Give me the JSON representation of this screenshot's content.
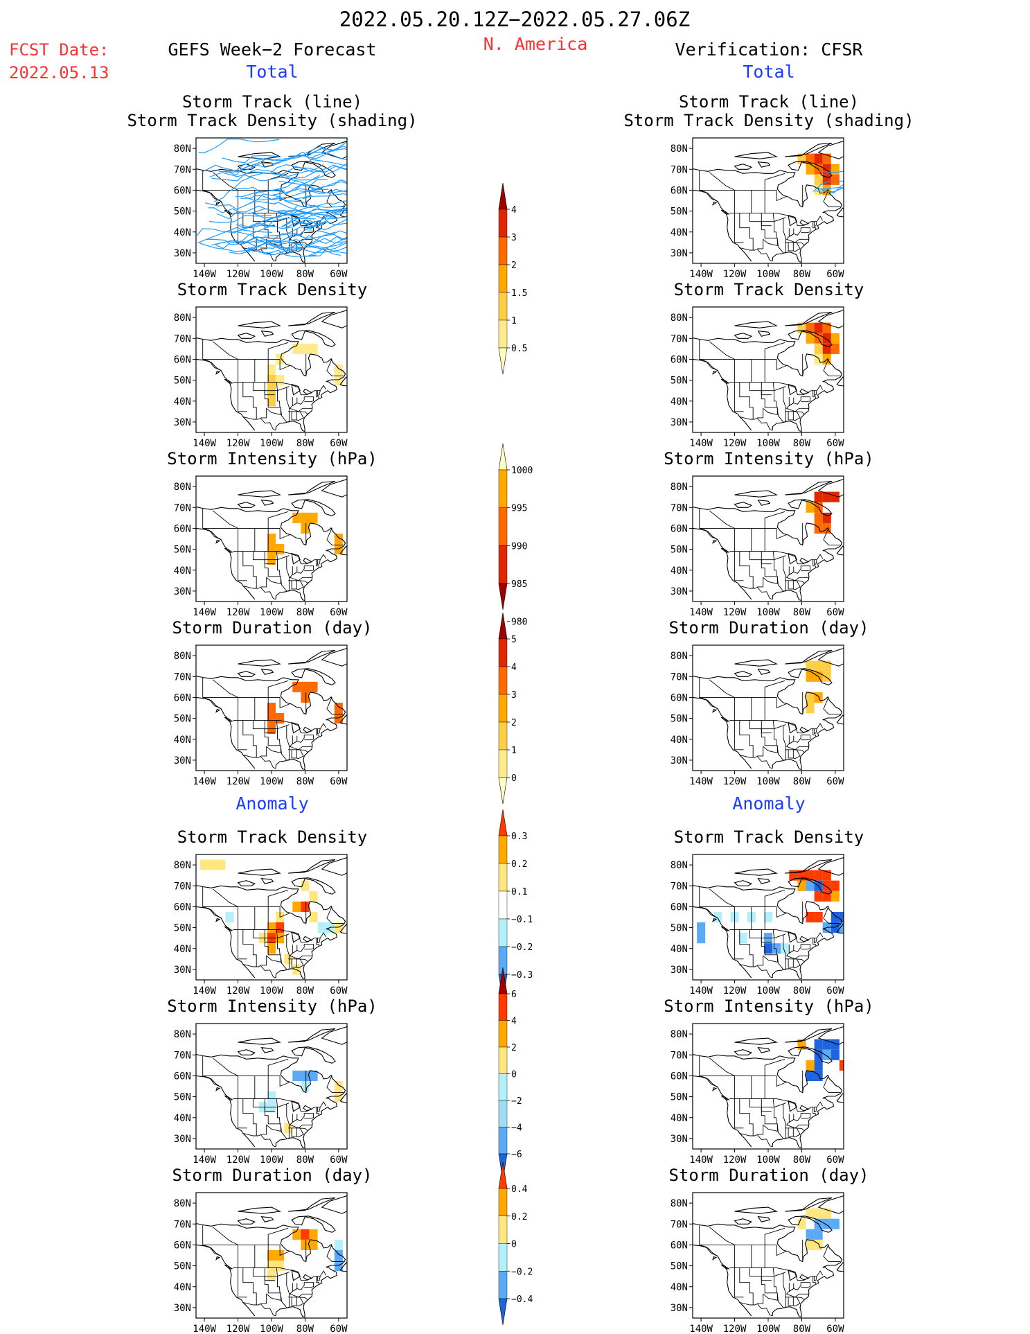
{
  "header": {
    "date_range": "2022.05.20.12Z−2022.05.27.06Z",
    "region": "N. America",
    "fcst_label": "FCST Date:",
    "fcst_date": "2022.05.13",
    "left_title": "GEFS Week−2 Forecast",
    "right_title": "Verification: CFSR",
    "total_label": "Total",
    "anomaly_label": "Anomaly"
  },
  "colors": {
    "red_text": "#ff3030",
    "blue_text": "#1a3cff",
    "track_line": "#1e9bff"
  },
  "axes": {
    "lat_ticks": [
      "80N",
      "70N",
      "60N",
      "50N",
      "40N",
      "30N"
    ],
    "lon_ticks": [
      "140W",
      "120W",
      "100W",
      "80W",
      "60W"
    ],
    "xlim": [
      -145,
      -55
    ],
    "ylim": [
      25,
      85
    ]
  },
  "colorbars": [
    {
      "name": "total-density",
      "labels": [
        "4",
        "3",
        "2",
        "1.5",
        "1",
        "0.5"
      ],
      "colors": [
        "#a00000",
        "#e02800",
        "#ff6a00",
        "#ffa800",
        "#ffcd46",
        "#ffeb8c",
        "#ffffc4"
      ]
    },
    {
      "name": "total-intensity",
      "labels": [
        "1000",
        "995",
        "990",
        "985",
        "980"
      ],
      "colors": [
        "#ffffc4",
        "#ffa800",
        "#ff6a00",
        "#e02800",
        "#a00000"
      ]
    },
    {
      "name": "total-duration",
      "labels": [
        "5",
        "4",
        "3",
        "2",
        "1",
        "0"
      ],
      "colors": [
        "#a00000",
        "#e02800",
        "#ff6a00",
        "#ffa800",
        "#ffcd46",
        "#ffeb8c",
        "#ffffc4"
      ]
    },
    {
      "name": "anom-density",
      "labels": [
        "0.3",
        "0.2",
        "0.1",
        "−0.1",
        "−0.2",
        "−0.3"
      ],
      "colors": [
        "#ff3c00",
        "#ffa800",
        "#ffe680",
        "#ffffff",
        "#b4f0fa",
        "#5aaaf5",
        "#1e64dc"
      ]
    },
    {
      "name": "anom-intensity",
      "labels": [
        "6",
        "4",
        "2",
        "0",
        "−2",
        "−4",
        "−6"
      ],
      "colors": [
        "#a00000",
        "#ff3c00",
        "#ffa800",
        "#ffe680",
        "#b4f0fa",
        "#a0dcf5",
        "#5aaaf5",
        "#1e64dc"
      ]
    },
    {
      "name": "anom-duration",
      "labels": [
        "0.4",
        "0.2",
        "0",
        "−0.2",
        "−0.4"
      ],
      "colors": [
        "#ff3c00",
        "#ffa800",
        "#ffe680",
        "#b4f0fa",
        "#5aaaf5",
        "#1e64dc"
      ]
    }
  ],
  "chart_data": [
    {
      "type": "heatmap",
      "panel": "gefs-total-track",
      "title": "Storm Track (line)",
      "subtitle": "Storm Track Density (shading)",
      "has_tracks": true,
      "cells": []
    },
    {
      "type": "heatmap",
      "panel": "cfsr-total-track",
      "title": "Storm Track (line)",
      "subtitle": "Storm Track Density (shading)",
      "has_tracks": true,
      "cells": [
        [
          -80,
          75,
          1.2
        ],
        [
          -75,
          75,
          2.2
        ],
        [
          -70,
          75,
          3.0
        ],
        [
          -65,
          75,
          2.1
        ],
        [
          -75,
          70,
          1.6
        ],
        [
          -70,
          70,
          2.5
        ],
        [
          -65,
          70,
          3.4
        ],
        [
          -60,
          70,
          1.8
        ],
        [
          -70,
          65,
          1.2
        ],
        [
          -65,
          65,
          3.6
        ],
        [
          -60,
          65,
          2.6
        ],
        [
          -70,
          60,
          0.8
        ],
        [
          -65,
          60,
          1.6
        ]
      ]
    },
    {
      "type": "heatmap",
      "panel": "gefs-total-density",
      "title": "Storm Track Density",
      "cells": [
        [
          -85,
          65,
          0.7
        ],
        [
          -80,
          65,
          0.6
        ],
        [
          -75,
          65,
          0.6
        ],
        [
          -100,
          55,
          0.8
        ],
        [
          -100,
          50,
          1.0
        ],
        [
          -100,
          45,
          1.3
        ],
        [
          -100,
          40,
          1.2
        ],
        [
          -95,
          50,
          0.9
        ],
        [
          -60,
          55,
          0.6
        ],
        [
          -60,
          50,
          0.6
        ],
        [
          -95,
          60,
          0.6
        ]
      ]
    },
    {
      "type": "heatmap",
      "panel": "cfsr-total-density",
      "title": "Storm Track Density",
      "cells": [
        [
          -80,
          75,
          1.3
        ],
        [
          -75,
          75,
          2.4
        ],
        [
          -70,
          75,
          3.0
        ],
        [
          -65,
          75,
          2.0
        ],
        [
          -75,
          70,
          1.6
        ],
        [
          -70,
          70,
          2.6
        ],
        [
          -65,
          70,
          3.5
        ],
        [
          -60,
          70,
          1.8
        ],
        [
          -70,
          65,
          1.4
        ],
        [
          -65,
          65,
          3.8
        ],
        [
          -60,
          65,
          2.6
        ],
        [
          -70,
          60,
          0.8
        ],
        [
          -65,
          60,
          1.5
        ]
      ]
    },
    {
      "type": "heatmap",
      "panel": "gefs-total-intensity",
      "title": "Storm Intensity (hPa)",
      "cells": [
        [
          -85,
          65,
          992
        ],
        [
          -80,
          65,
          991
        ],
        [
          -75,
          65,
          992
        ],
        [
          -80,
          60,
          993
        ],
        [
          -100,
          55,
          992
        ],
        [
          -100,
          50,
          991
        ],
        [
          -100,
          45,
          993
        ],
        [
          -95,
          50,
          992
        ],
        [
          -60,
          55,
          993
        ],
        [
          -60,
          50,
          993
        ]
      ]
    },
    {
      "type": "heatmap",
      "panel": "cfsr-total-intensity",
      "title": "Storm Intensity (hPa)",
      "cells": [
        [
          -70,
          75,
          984
        ],
        [
          -65,
          75,
          983
        ],
        [
          -60,
          75,
          984
        ],
        [
          -75,
          70,
          991
        ],
        [
          -70,
          70,
          988
        ],
        [
          -65,
          65,
          982
        ],
        [
          -70,
          65,
          986
        ],
        [
          -70,
          60,
          988
        ],
        [
          -65,
          60,
          989
        ]
      ]
    },
    {
      "type": "heatmap",
      "panel": "gefs-total-duration",
      "title": "Storm Duration (day)",
      "cells": [
        [
          -85,
          65,
          3.4
        ],
        [
          -80,
          65,
          3.3
        ],
        [
          -75,
          65,
          3.2
        ],
        [
          -80,
          60,
          3.1
        ],
        [
          -100,
          55,
          3.3
        ],
        [
          -100,
          50,
          3.2
        ],
        [
          -100,
          45,
          3.1
        ],
        [
          -95,
          50,
          3.0
        ],
        [
          -60,
          55,
          3.2
        ],
        [
          -60,
          50,
          3.1
        ]
      ]
    },
    {
      "type": "heatmap",
      "panel": "cfsr-total-duration",
      "title": "Storm Duration (day)",
      "cells": [
        [
          -75,
          75,
          1.5
        ],
        [
          -70,
          75,
          1.8
        ],
        [
          -65,
          75,
          1.6
        ],
        [
          -75,
          70,
          2.2
        ],
        [
          -70,
          70,
          2.5
        ],
        [
          -65,
          70,
          1.4
        ],
        [
          -75,
          60,
          1.8
        ],
        [
          -70,
          60,
          2.0
        ],
        [
          -75,
          55,
          1.5
        ]
      ]
    },
    {
      "type": "heatmap",
      "panel": "gefs-anom-density",
      "title": "Storm Track Density",
      "cells": [
        [
          -140,
          80,
          0.12
        ],
        [
          -135,
          80,
          0.12
        ],
        [
          -130,
          80,
          0.11
        ],
        [
          -80,
          70,
          0.14
        ],
        [
          -75,
          65,
          0.16
        ],
        [
          -85,
          60,
          0.2
        ],
        [
          -80,
          60,
          0.32
        ],
        [
          -75,
          55,
          0.14
        ],
        [
          -95,
          55,
          0.12
        ],
        [
          -100,
          50,
          0.26
        ],
        [
          -95,
          50,
          0.32
        ],
        [
          -100,
          45,
          0.35
        ],
        [
          -95,
          45,
          0.28
        ],
        [
          -100,
          40,
          0.22
        ],
        [
          -105,
          45,
          0.16
        ],
        [
          -70,
          50,
          -0.12
        ],
        [
          -65,
          50,
          -0.11
        ],
        [
          -60,
          50,
          0.14
        ],
        [
          -90,
          35,
          0.12
        ],
        [
          -85,
          30,
          0.12
        ],
        [
          -125,
          55,
          -0.11
        ]
      ]
    },
    {
      "type": "heatmap",
      "panel": "cfsr-anom-density",
      "title": "Storm Track Density",
      "cells": [
        [
          -85,
          75,
          0.32
        ],
        [
          -80,
          75,
          0.35
        ],
        [
          -75,
          75,
          0.33
        ],
        [
          -70,
          75,
          0.34
        ],
        [
          -65,
          75,
          0.32
        ],
        [
          -80,
          70,
          0.22
        ],
        [
          -75,
          70,
          -0.25
        ],
        [
          -70,
          70,
          -0.3
        ],
        [
          -65,
          70,
          0.34
        ],
        [
          -60,
          70,
          0.32
        ],
        [
          -70,
          65,
          0.32
        ],
        [
          -65,
          65,
          0.35
        ],
        [
          -60,
          65,
          0.2
        ],
        [
          -75,
          55,
          0.32
        ],
        [
          -70,
          55,
          0.3
        ],
        [
          -60,
          55,
          -0.3
        ],
        [
          -55,
          55,
          -0.3
        ],
        [
          -60,
          50,
          -0.3
        ],
        [
          -55,
          50,
          -0.28
        ],
        [
          -65,
          50,
          -0.25
        ],
        [
          -130,
          55,
          -0.12
        ],
        [
          -120,
          55,
          -0.12
        ],
        [
          -110,
          55,
          -0.12
        ],
        [
          -100,
          55,
          -0.12
        ],
        [
          -140,
          50,
          -0.25
        ],
        [
          -140,
          45,
          -0.2
        ],
        [
          -100,
          45,
          -0.28
        ],
        [
          -100,
          40,
          -0.3
        ],
        [
          -95,
          40,
          -0.28
        ],
        [
          -90,
          40,
          -0.15
        ],
        [
          -115,
          45,
          -0.12
        ]
      ]
    },
    {
      "type": "heatmap",
      "panel": "gefs-anom-intensity",
      "title": "Storm Intensity (hPa)",
      "cells": [
        [
          -85,
          60,
          -2.5
        ],
        [
          -80,
          60,
          -3.2
        ],
        [
          -75,
          60,
          -2.4
        ],
        [
          -80,
          55,
          -1.4
        ],
        [
          -100,
          50,
          -0.6
        ],
        [
          -100,
          45,
          -0.8
        ],
        [
          -105,
          45,
          -0.5
        ],
        [
          -60,
          55,
          1.2
        ],
        [
          -60,
          50,
          1.3
        ],
        [
          -90,
          35,
          0.6
        ]
      ]
    },
    {
      "type": "heatmap",
      "panel": "cfsr-anom-intensity",
      "title": "Storm Intensity (hPa)",
      "cells": [
        [
          -70,
          75,
          -4.2
        ],
        [
          -65,
          75,
          -5.0
        ],
        [
          -60,
          75,
          -4.5
        ],
        [
          -70,
          70,
          -4.8
        ],
        [
          -65,
          70,
          -3.8
        ],
        [
          -60,
          70,
          -4.6
        ],
        [
          -70,
          65,
          -5.2
        ],
        [
          -75,
          65,
          3.2
        ],
        [
          -55,
          65,
          5.0
        ],
        [
          -75,
          60,
          -5.0
        ],
        [
          -70,
          60,
          -4.2
        ],
        [
          -80,
          75,
          2.4
        ]
      ]
    },
    {
      "type": "heatmap",
      "panel": "gefs-anom-duration",
      "title": "Storm Duration (day)",
      "cells": [
        [
          -100,
          55,
          0.34
        ],
        [
          -95,
          55,
          0.38
        ],
        [
          -100,
          50,
          0.12
        ],
        [
          -95,
          50,
          0.14
        ],
        [
          -100,
          45,
          0.14
        ],
        [
          -85,
          65,
          0.36
        ],
        [
          -80,
          65,
          0.42
        ],
        [
          -75,
          65,
          0.35
        ],
        [
          -80,
          60,
          0.32
        ],
        [
          -75,
          60,
          0.24
        ],
        [
          -60,
          60,
          -0.12
        ],
        [
          -60,
          55,
          -0.3
        ],
        [
          -60,
          50,
          -0.22
        ]
      ]
    },
    {
      "type": "heatmap",
      "panel": "cfsr-anom-duration",
      "title": "Storm Duration (day)",
      "cells": [
        [
          -75,
          75,
          0.12
        ],
        [
          -70,
          75,
          0.14
        ],
        [
          -65,
          75,
          0.1
        ],
        [
          -70,
          70,
          -0.3
        ],
        [
          -65,
          70,
          -0.35
        ],
        [
          -60,
          70,
          -0.36
        ],
        [
          -75,
          65,
          -0.3
        ],
        [
          -70,
          65,
          -0.34
        ],
        [
          -75,
          60,
          0.18
        ],
        [
          -70,
          60,
          0.12
        ],
        [
          -80,
          70,
          0.18
        ]
      ]
    }
  ]
}
